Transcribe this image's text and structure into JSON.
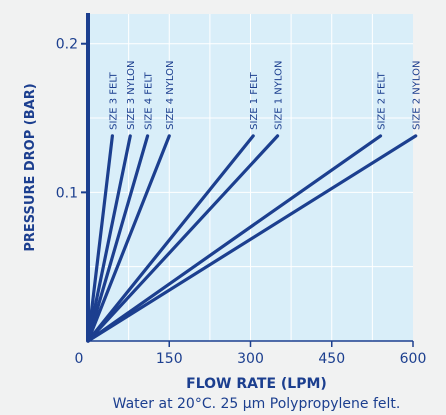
{
  "colors": {
    "page_background": "#f1f2f2",
    "plot_background": "#d9eef9",
    "gridline": "#ffffff",
    "axis": "#1c3f8f",
    "text": "#1c3f8f",
    "caption": "#1c3f8f"
  },
  "chart_data": {
    "type": "line",
    "title": "",
    "xlabel": "FLOW RATE (LPM)",
    "ylabel": "PRESSURE DROP (BAR)",
    "caption": "Water at 20°C. 25 µm Polypropylene felt.",
    "xlim": [
      0,
      600
    ],
    "ylim": [
      0,
      0.22
    ],
    "x_ticks": [
      {
        "value": 0,
        "label": "0"
      },
      {
        "value": 150,
        "label": "150"
      },
      {
        "value": 300,
        "label": "300"
      },
      {
        "value": 450,
        "label": "450"
      },
      {
        "value": 600,
        "label": "600"
      }
    ],
    "y_ticks": [
      {
        "value": 0.1,
        "label": "0.1"
      },
      {
        "value": 0.2,
        "label": "0.2"
      }
    ],
    "grid": true,
    "legend": "labels at line ends",
    "series": [
      {
        "name": "SIZE 3 FELT",
        "points": [
          [
            0,
            0
          ],
          [
            45,
            0.138
          ]
        ]
      },
      {
        "name": "SIZE 3 NYLON",
        "points": [
          [
            0,
            0
          ],
          [
            78,
            0.138
          ]
        ]
      },
      {
        "name": "SIZE 4 FELT",
        "points": [
          [
            0,
            0
          ],
          [
            110,
            0.138
          ]
        ]
      },
      {
        "name": "SIZE 4 NYLON",
        "points": [
          [
            0,
            0
          ],
          [
            150,
            0.138
          ]
        ]
      },
      {
        "name": "SIZE 1 FELT",
        "points": [
          [
            0,
            0
          ],
          [
            305,
            0.138
          ]
        ]
      },
      {
        "name": "SIZE 1 NYLON",
        "points": [
          [
            0,
            0
          ],
          [
            350,
            0.138
          ]
        ]
      },
      {
        "name": "SIZE 2 FELT",
        "points": [
          [
            0,
            0
          ],
          [
            540,
            0.138
          ]
        ]
      },
      {
        "name": "SIZE 2 NYLON",
        "points": [
          [
            0,
            0
          ],
          [
            605,
            0.138
          ]
        ]
      }
    ]
  }
}
